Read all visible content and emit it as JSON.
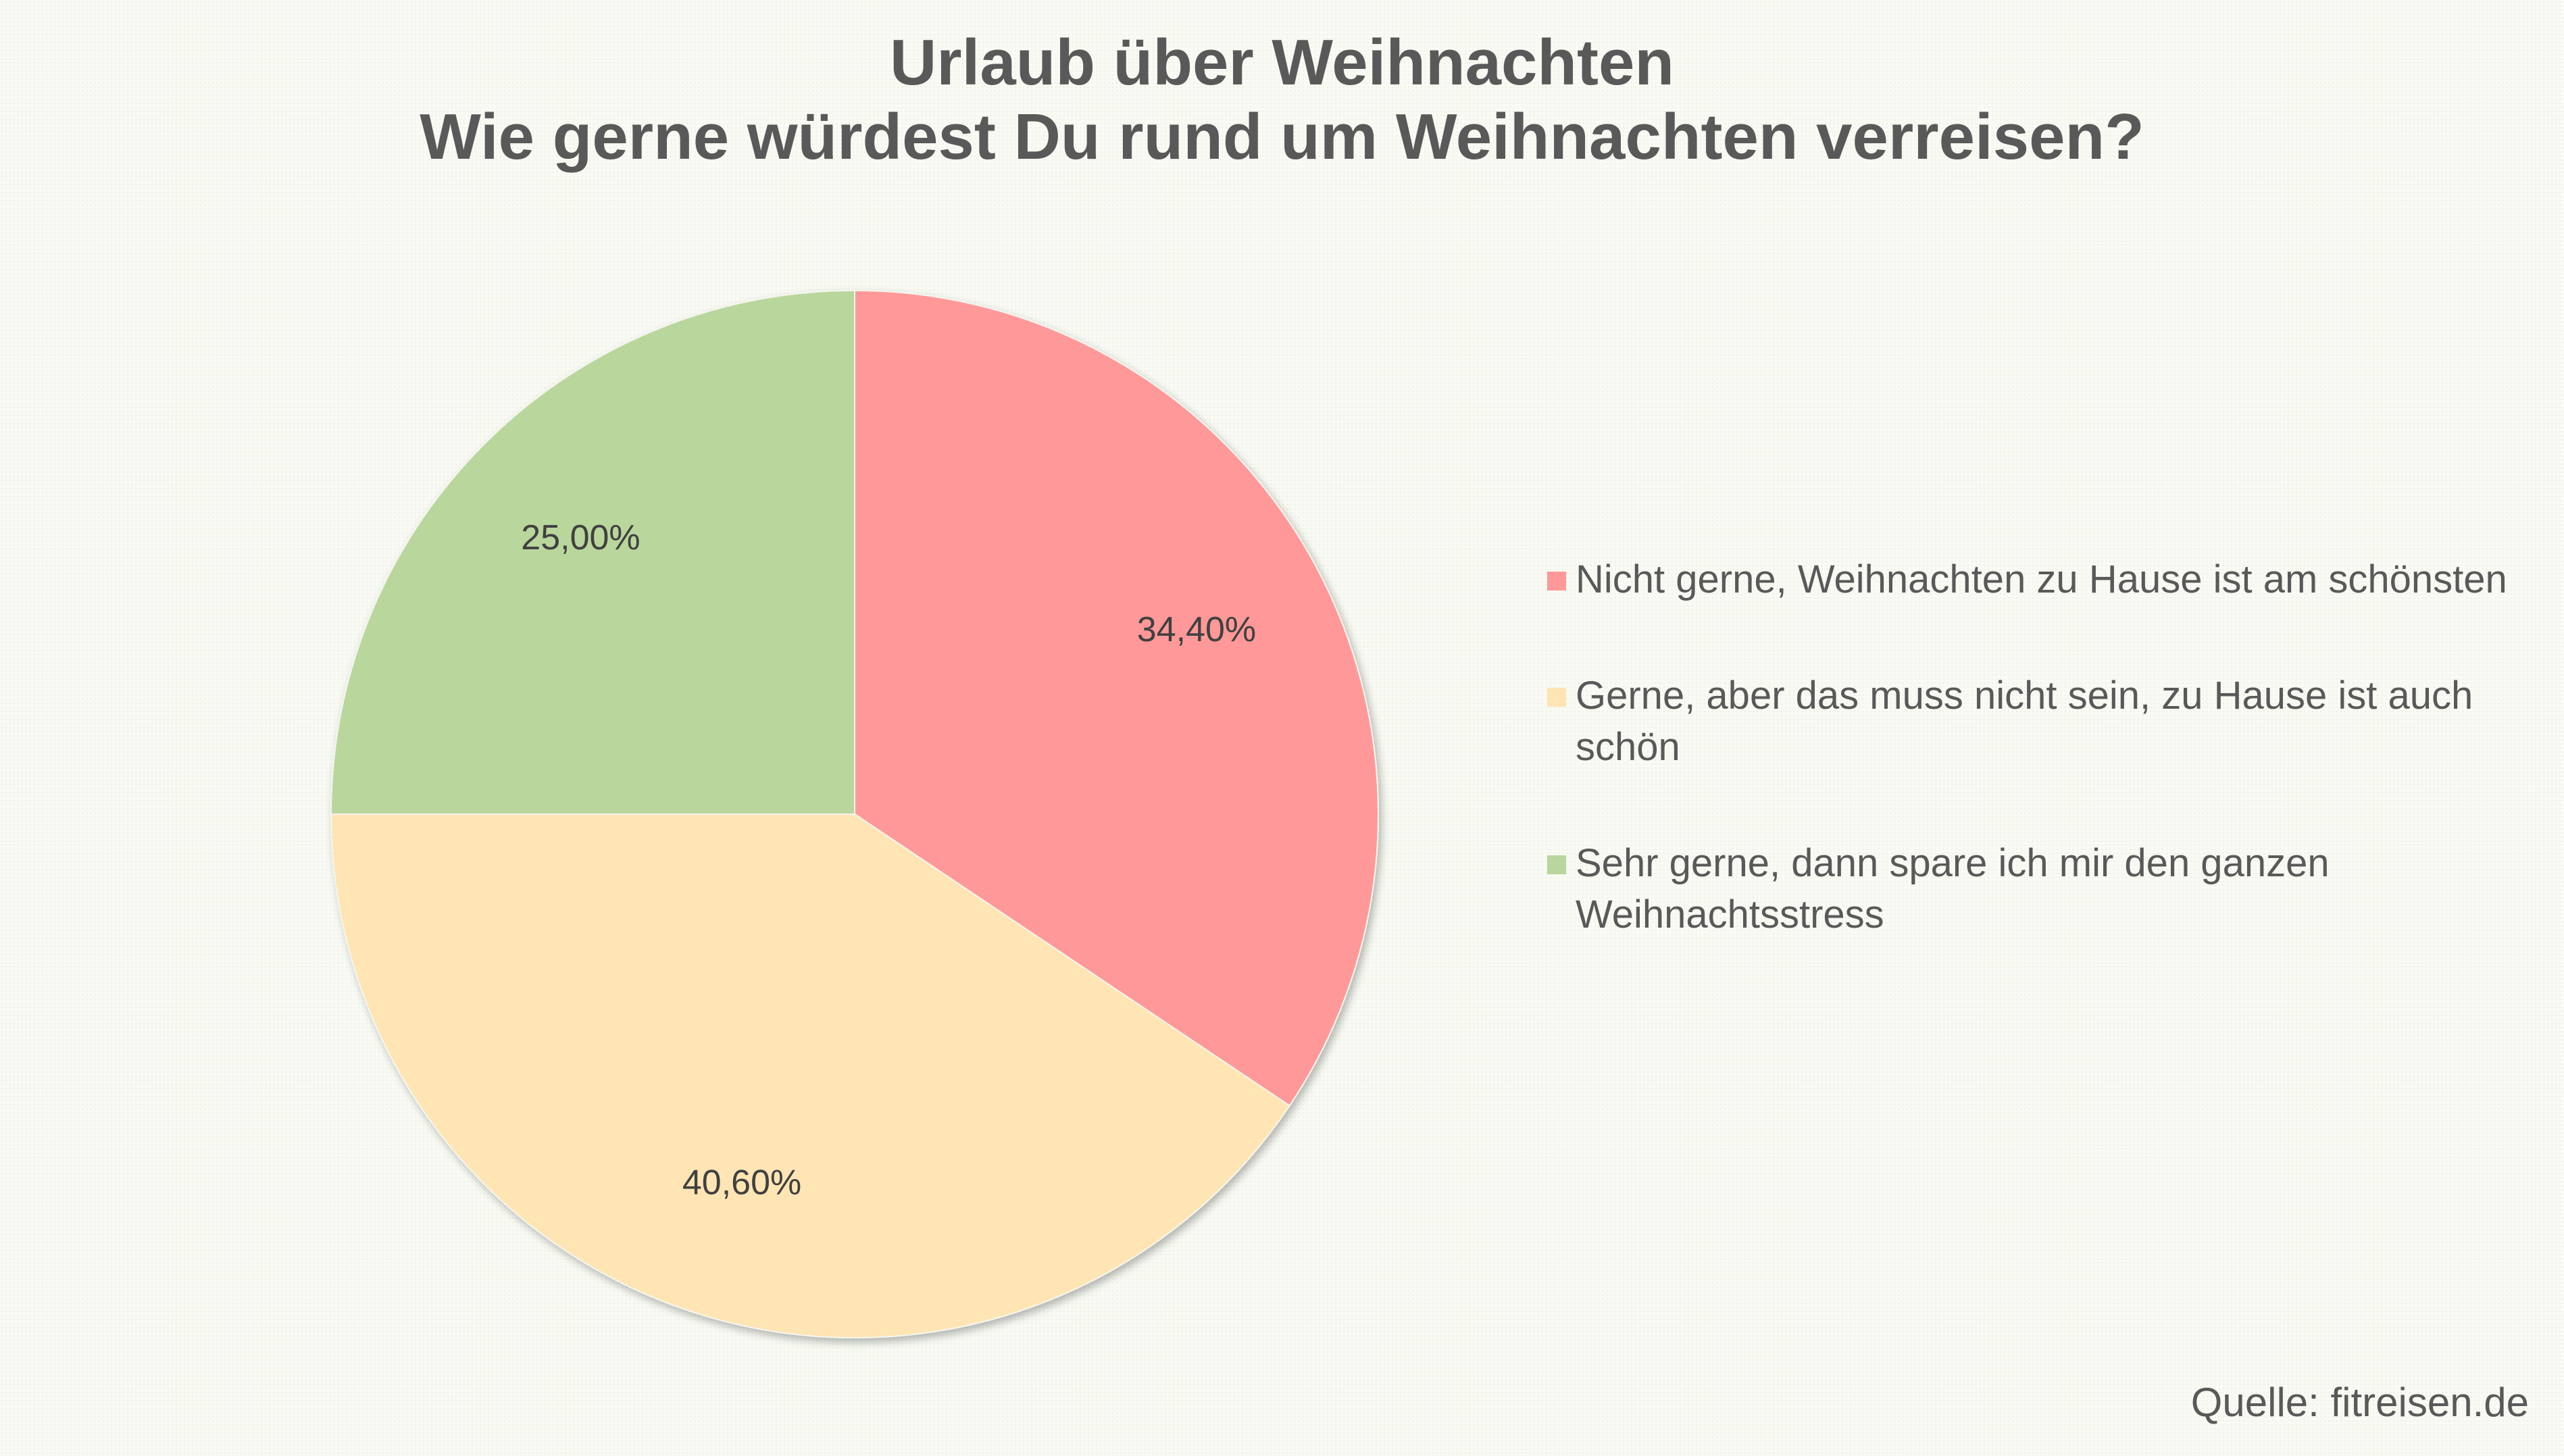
{
  "source": "Quelle: fitreisen.de",
  "chart_data": {
    "type": "pie",
    "title": "Urlaub über Weihnachten",
    "subtitle": "Wie gerne würdest Du rund um Weihnachten verreisen?",
    "start_angle": "12 o'clock",
    "direction": "clockwise",
    "legend_position": "right",
    "slices": [
      {
        "label": "Nicht gerne, Weihnachten zu Hause ist am schönsten",
        "value": 34.4,
        "display": "34,40%",
        "color": "#ff9999"
      },
      {
        "label": "Gerne, aber das muss nicht sein, zu Hause ist auch schön",
        "value": 40.6,
        "display": "40,60%",
        "color": "#ffe5b4"
      },
      {
        "label": "Sehr gerne, dann spare ich mir den ganzen Weihnachtsstress",
        "value": 25.0,
        "display": "25,00%",
        "color": "#b9d69c"
      }
    ]
  }
}
